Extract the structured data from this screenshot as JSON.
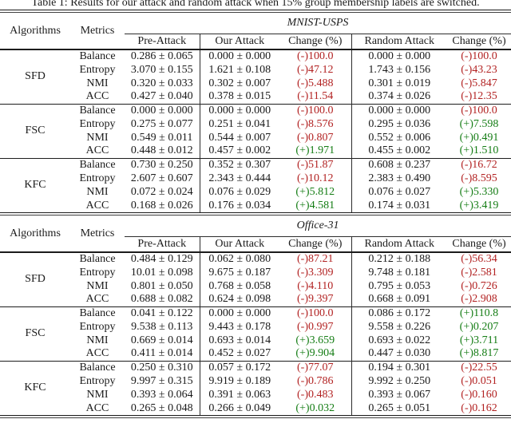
{
  "caption": "Table 1: Results for our attack and random attack when 15% group membership labels are switched.",
  "colors": {
    "negative": "#b22222",
    "positive": "#157d15",
    "rule": "#1c1c1c",
    "text": "#1a1a1a"
  },
  "header": {
    "algorithms": "Algorithms",
    "metrics": "Metrics",
    "columns": [
      "Pre-Attack",
      "Our Attack",
      "Change (%)",
      "Random Attack",
      "Change (%)"
    ]
  },
  "sections": [
    {
      "dataset": "MNIST-USPS",
      "groups": [
        {
          "algorithm": "SFD",
          "rows": [
            {
              "metric": "Balance",
              "pre": "0.286 ± 0.065",
              "our": "0.000 ± 0.000",
              "our_change": "(-)100.0",
              "rand": "0.000 ± 0.000",
              "rand_change": "(-)100.0"
            },
            {
              "metric": "Entropy",
              "pre": "3.070 ± 0.155",
              "our": "1.621 ± 0.108",
              "our_change": "(-)47.12",
              "rand": "1.743 ± 0.156",
              "rand_change": "(-)43.23"
            },
            {
              "metric": "NMI",
              "pre": "0.320 ± 0.033",
              "our": "0.302 ± 0.007",
              "our_change": "(-)5.488",
              "rand": "0.301 ± 0.019",
              "rand_change": "(-)5.847"
            },
            {
              "metric": "ACC",
              "pre": "0.427 ± 0.040",
              "our": "0.378 ± 0.015",
              "our_change": "(-)11.54",
              "rand": "0.374 ± 0.026",
              "rand_change": "(-)12.35"
            }
          ]
        },
        {
          "algorithm": "FSC",
          "rows": [
            {
              "metric": "Balance",
              "pre": "0.000 ± 0.000",
              "our": "0.000 ± 0.000",
              "our_change": "(-)100.0",
              "rand": "0.000 ± 0.000",
              "rand_change": "(-)100.0"
            },
            {
              "metric": "Entropy",
              "pre": "0.275 ± 0.077",
              "our": "0.251 ± 0.041",
              "our_change": "(-)8.576",
              "rand": "0.295 ± 0.036",
              "rand_change": "(+)7.598"
            },
            {
              "metric": "NMI",
              "pre": "0.549 ± 0.011",
              "our": "0.544 ± 0.007",
              "our_change": "(-)0.807",
              "rand": "0.552 ± 0.006",
              "rand_change": "(+)0.491"
            },
            {
              "metric": "ACC",
              "pre": "0.448 ± 0.012",
              "our": "0.457 ± 0.002",
              "our_change": "(+)1.971",
              "rand": "0.455 ± 0.002",
              "rand_change": "(+)1.510"
            }
          ]
        },
        {
          "algorithm": "KFC",
          "rows": [
            {
              "metric": "Balance",
              "pre": "0.730 ± 0.250",
              "our": "0.352 ± 0.307",
              "our_change": "(-)51.87",
              "rand": "0.608 ± 0.237",
              "rand_change": "(-)16.72"
            },
            {
              "metric": "Entropy",
              "pre": "2.607 ± 0.607",
              "our": "2.343 ± 0.444",
              "our_change": "(-)10.12",
              "rand": "2.383 ± 0.490",
              "rand_change": "(-)8.595"
            },
            {
              "metric": "NMI",
              "pre": "0.072 ± 0.024",
              "our": "0.076 ± 0.029",
              "our_change": "(+)5.812",
              "rand": "0.076 ± 0.027",
              "rand_change": "(+)5.330"
            },
            {
              "metric": "ACC",
              "pre": "0.168 ± 0.026",
              "our": "0.176 ± 0.034",
              "our_change": "(+)4.581",
              "rand": "0.174 ± 0.031",
              "rand_change": "(+)3.419"
            }
          ]
        }
      ]
    },
    {
      "dataset": "Office-31",
      "groups": [
        {
          "algorithm": "SFD",
          "rows": [
            {
              "metric": "Balance",
              "pre": "0.484 ± 0.129",
              "our": "0.062 ± 0.080",
              "our_change": "(-)87.21",
              "rand": "0.212 ± 0.188",
              "rand_change": "(-)56.34"
            },
            {
              "metric": "Entropy",
              "pre": "10.01 ± 0.098",
              "our": "9.675 ± 0.187",
              "our_change": "(-)3.309",
              "rand": "9.748 ± 0.181",
              "rand_change": "(-)2.581"
            },
            {
              "metric": "NMI",
              "pre": "0.801 ± 0.050",
              "our": "0.768 ± 0.058",
              "our_change": "(-)4.110",
              "rand": "0.795 ± 0.053",
              "rand_change": "(-)0.726"
            },
            {
              "metric": "ACC",
              "pre": "0.688 ± 0.082",
              "our": "0.624 ± 0.098",
              "our_change": "(-)9.397",
              "rand": "0.668 ± 0.091",
              "rand_change": "(-)2.908"
            }
          ]
        },
        {
          "algorithm": "FSC",
          "rows": [
            {
              "metric": "Balance",
              "pre": "0.041 ± 0.122",
              "our": "0.000 ± 0.000",
              "our_change": "(-)100.0",
              "rand": "0.086 ± 0.172",
              "rand_change": "(+)110.8"
            },
            {
              "metric": "Entropy",
              "pre": "9.538 ± 0.113",
              "our": "9.443 ± 0.178",
              "our_change": "(-)0.997",
              "rand": "9.558 ± 0.226",
              "rand_change": "(+)0.207"
            },
            {
              "metric": "NMI",
              "pre": "0.669 ± 0.014",
              "our": "0.693 ± 0.014",
              "our_change": "(+)3.659",
              "rand": "0.693 ± 0.022",
              "rand_change": "(+)3.711"
            },
            {
              "metric": "ACC",
              "pre": "0.411 ± 0.014",
              "our": "0.452 ± 0.027",
              "our_change": "(+)9.904",
              "rand": "0.447 ± 0.030",
              "rand_change": "(+)8.817"
            }
          ]
        },
        {
          "algorithm": "KFC",
          "rows": [
            {
              "metric": "Balance",
              "pre": "0.250 ± 0.310",
              "our": "0.057 ± 0.172",
              "our_change": "(-)77.07",
              "rand": "0.194 ± 0.301",
              "rand_change": "(-)22.55"
            },
            {
              "metric": "Entropy",
              "pre": "9.997 ± 0.315",
              "our": "9.919 ± 0.189",
              "our_change": "(-)0.786",
              "rand": "9.992 ± 0.250",
              "rand_change": "(-)0.051"
            },
            {
              "metric": "NMI",
              "pre": "0.393 ± 0.064",
              "our": "0.391 ± 0.063",
              "our_change": "(-)0.483",
              "rand": "0.393 ± 0.067",
              "rand_change": "(-)0.160"
            },
            {
              "metric": "ACC",
              "pre": "0.265 ± 0.048",
              "our": "0.266 ± 0.049",
              "our_change": "(+)0.032",
              "rand": "0.265 ± 0.051",
              "rand_change": "(-)0.162"
            }
          ]
        }
      ]
    }
  ]
}
